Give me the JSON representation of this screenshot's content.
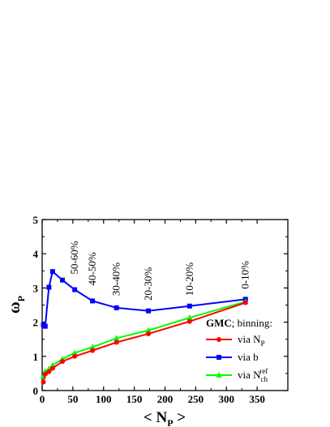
{
  "chart_data": {
    "type": "line",
    "xlabel": "< N",
    "xlabel_sub": "P",
    "xlabel_end": " >",
    "ylabel": "ω",
    "ylabel_sub": "P",
    "xlim": [
      0,
      400
    ],
    "ylim": [
      0,
      5
    ],
    "xticks": [
      0,
      50,
      100,
      150,
      200,
      250,
      300,
      350
    ],
    "yticks": [
      0,
      1,
      2,
      3,
      4,
      5
    ],
    "grid": false,
    "legend_title": "GMC; binning:",
    "legend_title_bold": "GMC",
    "legend_title_rest": "; binning:",
    "legend_position": "lower-right",
    "series": [
      {
        "name": "via N_P",
        "legend_parts": [
          "via N",
          "P",
          ""
        ],
        "color": "#ff0000",
        "marker": "circle",
        "x": [
          2,
          5,
          11,
          17,
          33,
          53,
          82,
          121,
          173,
          240,
          331
        ],
        "y": [
          0.25,
          0.48,
          0.55,
          0.65,
          0.85,
          1.0,
          1.17,
          1.41,
          1.66,
          2.02,
          2.57
        ]
      },
      {
        "name": "via b",
        "legend_parts": [
          "via b",
          "",
          ""
        ],
        "color": "#0000ff",
        "marker": "square",
        "x": [
          2,
          5,
          11,
          17,
          33,
          53,
          82,
          121,
          173,
          240,
          331
        ],
        "y": [
          1.92,
          1.88,
          3.02,
          3.48,
          3.23,
          2.95,
          2.62,
          2.42,
          2.33,
          2.47,
          2.67
        ]
      },
      {
        "name": "via N_ch^ref",
        "legend_parts": [
          "via N",
          "ch",
          "ref"
        ],
        "color": "#00ff00",
        "marker": "triangle",
        "x": [
          2,
          5,
          11,
          17,
          33,
          53,
          82,
          121,
          173,
          240,
          331
        ],
        "y": [
          0.42,
          0.56,
          0.63,
          0.74,
          0.92,
          1.1,
          1.27,
          1.53,
          1.76,
          2.13,
          2.6
        ]
      }
    ],
    "annotations": [
      {
        "text": "50-60%",
        "x": 53,
        "y": 3.4
      },
      {
        "text": "40-50%",
        "x": 82,
        "y": 3.07
      },
      {
        "text": "30-40%",
        "x": 121,
        "y": 2.77
      },
      {
        "text": "20-30%",
        "x": 173,
        "y": 2.63
      },
      {
        "text": "10-20%",
        "x": 240,
        "y": 2.77
      },
      {
        "text": "0-10%",
        "x": 331,
        "y": 2.97
      }
    ]
  }
}
